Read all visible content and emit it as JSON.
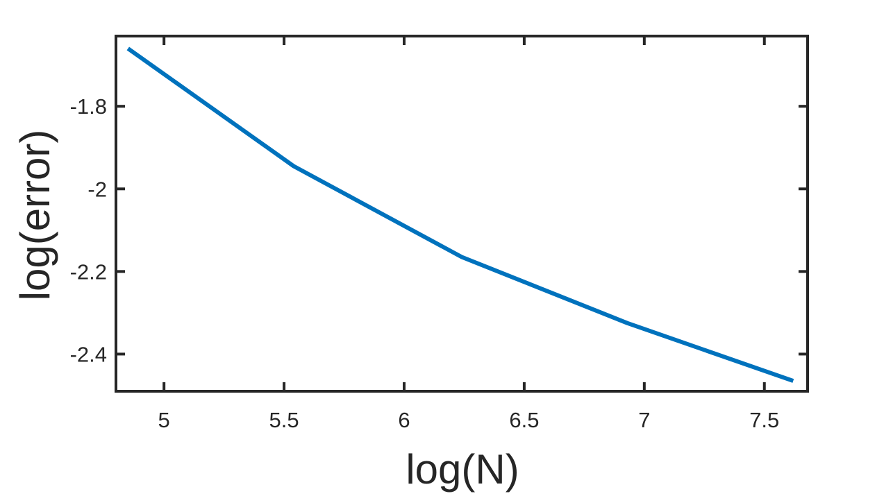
{
  "chart_data": {
    "type": "line",
    "title": "",
    "xlabel": "log(N)",
    "ylabel": "log(error)",
    "xlim": [
      4.8,
      7.68
    ],
    "ylim": [
      -2.49,
      -1.63
    ],
    "xticks": [
      5,
      5.5,
      6,
      6.5,
      7,
      7.5
    ],
    "xtick_labels": [
      "5",
      "5.5",
      "6",
      "6.5",
      "7",
      "7.5"
    ],
    "yticks": [
      -1.8,
      -2,
      -2.2,
      -2.4
    ],
    "ytick_labels": [
      "-1.8",
      "-2",
      "-2.2",
      "-2.4"
    ],
    "grid": false,
    "legend": "none",
    "series": [
      {
        "color": "#0072BD",
        "x": [
          4.85,
          5.54,
          6.24,
          6.93,
          7.62
        ],
        "y": [
          -1.66,
          -1.945,
          -2.165,
          -2.325,
          -2.465
        ]
      }
    ],
    "colors": {
      "axes": "#262626",
      "line": "#0072BD"
    }
  }
}
